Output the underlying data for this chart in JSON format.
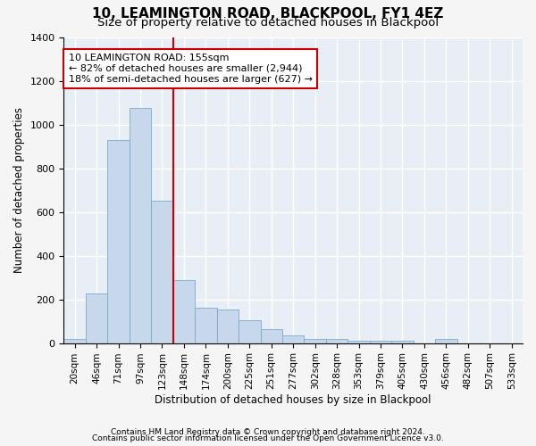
{
  "title": "10, LEAMINGTON ROAD, BLACKPOOL, FY1 4EZ",
  "subtitle": "Size of property relative to detached houses in Blackpool",
  "xlabel": "Distribution of detached houses by size in Blackpool",
  "ylabel": "Number of detached properties",
  "bar_color": "#c8d8ec",
  "bar_edge_color": "#7aaac8",
  "background_color": "#e8eef5",
  "grid_color": "#ffffff",
  "fig_background": "#f5f5f5",
  "categories": [
    "20sqm",
    "46sqm",
    "71sqm",
    "97sqm",
    "123sqm",
    "148sqm",
    "174sqm",
    "200sqm",
    "225sqm",
    "251sqm",
    "277sqm",
    "302sqm",
    "328sqm",
    "353sqm",
    "379sqm",
    "405sqm",
    "430sqm",
    "456sqm",
    "482sqm",
    "507sqm",
    "533sqm"
  ],
  "values": [
    20,
    225,
    930,
    1075,
    650,
    290,
    160,
    155,
    105,
    65,
    35,
    20,
    20,
    10,
    10,
    10,
    0,
    20,
    0,
    0,
    0
  ],
  "ylim": [
    0,
    1400
  ],
  "yticks": [
    0,
    200,
    400,
    600,
    800,
    1000,
    1200,
    1400
  ],
  "vline_x_index": 4.5,
  "marker_label": "10 LEAMINGTON ROAD: 155sqm",
  "annotation_line1": "← 82% of detached houses are smaller (2,944)",
  "annotation_line2": "18% of semi-detached houses are larger (627) →",
  "vline_color": "#cc0000",
  "annotation_box_edge": "#cc0000",
  "footer1": "Contains HM Land Registry data © Crown copyright and database right 2024.",
  "footer2": "Contains public sector information licensed under the Open Government Licence v3.0.",
  "title_fontsize": 11,
  "subtitle_fontsize": 9.5,
  "axis_label_fontsize": 8.5,
  "tick_fontsize": 8,
  "annotation_fontsize": 8,
  "footer_fontsize": 6.5
}
